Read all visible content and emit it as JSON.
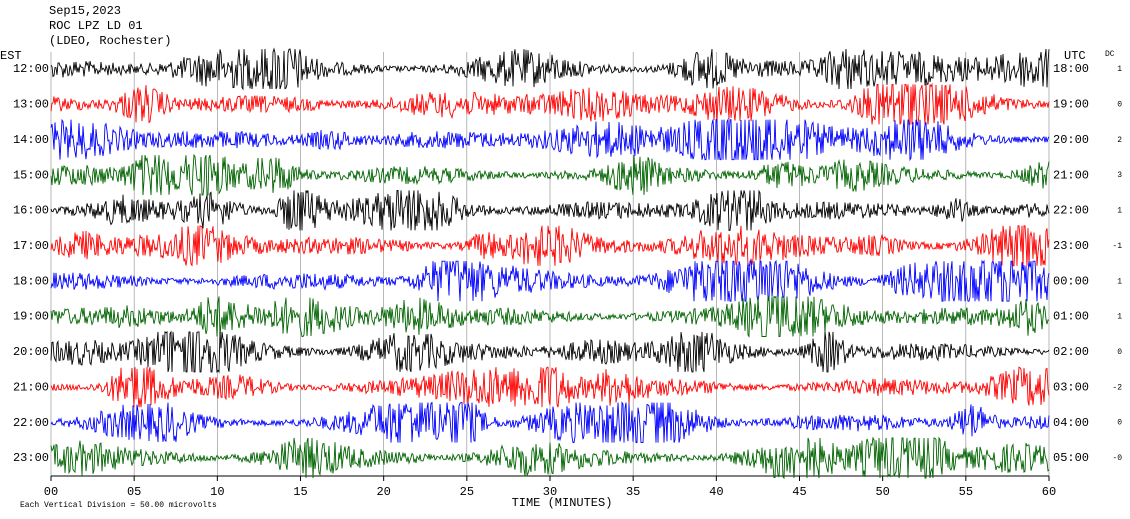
{
  "chart_data": {
    "type": "helicorder",
    "title_lines": [
      "Sep15,2023",
      "ROC LPZ LD 01",
      "(LDEO, Rochester)"
    ],
    "left_header": "EST",
    "right_header": "UTC",
    "dc_header": "DC",
    "rows": [
      "12:00",
      "13:00",
      "14:00",
      "15:00",
      "16:00",
      "17:00",
      "18:00",
      "19:00",
      "20:00",
      "21:00",
      "22:00",
      "23:00"
    ],
    "right_rows": [
      "18:00",
      "19:00",
      "20:00",
      "21:00",
      "22:00",
      "23:00",
      "00:00",
      "01:00",
      "02:00",
      "03:00",
      "04:00",
      "05:00"
    ],
    "dc": [
      1,
      0,
      2,
      3,
      1,
      -1,
      1,
      1,
      0,
      -2,
      0,
      {
        "value": 0,
        "label": "-0"
      }
    ],
    "colors": [
      "#000000",
      "#ff0000",
      "#0000ff",
      "#006400"
    ],
    "xlabel": "TIME (MINUTES)",
    "xlim": [
      0,
      60
    ],
    "xticks": [
      {
        "value": 0,
        "label": "00"
      },
      {
        "value": 5,
        "label": "05"
      },
      10,
      15,
      20,
      25,
      30,
      35,
      40,
      45,
      50,
      55,
      60
    ],
    "footer": "Each Vertical Division =   50.00 microvolts"
  }
}
